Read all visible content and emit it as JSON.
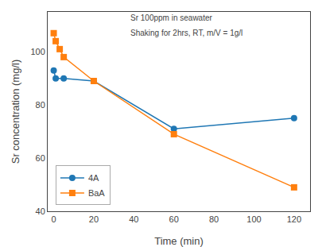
{
  "chart_data": {
    "type": "line",
    "xlabel": "Time (min)",
    "ylabel": "Sr concentration (mg/l)",
    "annotations": [
      "Sr 100ppm in seawater",
      "Shaking for 2hrs, RT, m/V = 1g/l"
    ],
    "series": [
      {
        "name": "4A",
        "x": [
          0,
          1,
          5,
          20,
          60,
          120
        ],
        "values": [
          93,
          90,
          90,
          89,
          71,
          75
        ],
        "marker": "circle"
      },
      {
        "name": "BaA",
        "x": [
          0,
          1,
          3,
          5,
          20,
          60,
          120
        ],
        "values": [
          107,
          104,
          101,
          98,
          89,
          69,
          49
        ],
        "marker": "square"
      }
    ],
    "xlim": [
      -3,
      128
    ],
    "ylim": [
      40,
      115
    ],
    "xticks": [
      0,
      20,
      40,
      60,
      80,
      100,
      120
    ],
    "yticks": [
      40,
      60,
      80,
      100
    ],
    "grid": false,
    "legend": "lower left"
  }
}
